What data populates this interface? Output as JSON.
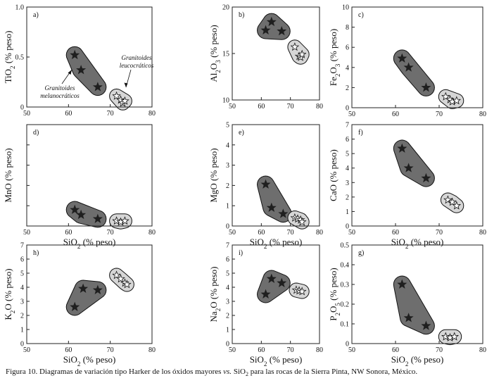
{
  "figure": {
    "caption_prefix": "Figura 10. Diagramas de variación tipo Harker de los óxidos mayores ",
    "caption_vs": "vs.",
    "caption_mid": " SiO",
    "caption_sub": "2",
    "caption_suffix": " para las rocas de la Sierra Pinta, NW Sonora, México.",
    "group_labels": {
      "leuco_line1": "Granitoides",
      "leuco_line2": "leucocráticos",
      "mela_line1": "Granitoides",
      "mela_line2": "melanocráticos"
    },
    "colors": {
      "melanocratic_field": "#6e6e6e",
      "leucocratic_field": "#d6d6d6",
      "frame": "#222222",
      "star_dark": "#1f1f1f",
      "star_open": "#ffffff"
    }
  },
  "chart_data": [
    {
      "type": "scatter",
      "panel": "a)",
      "ylabel_parts": [
        [
          "TiO",
          ""
        ],
        [
          "2",
          "sub"
        ],
        [
          " (% peso)",
          ""
        ]
      ],
      "xlabel_parts": [],
      "xlim": [
        50,
        80
      ],
      "xticks": [
        50,
        60,
        70,
        80
      ],
      "ylim": [
        0,
        1.0
      ],
      "yticks": [
        0,
        0.5,
        1.0
      ],
      "ytick_labels": [
        "0",
        "0.5",
        "1.0"
      ],
      "series": [
        {
          "name": "Granitoides melanocráticos",
          "marker": "filled-star",
          "points": [
            [
              61.5,
              0.52
            ],
            [
              63.0,
              0.37
            ],
            [
              67.0,
              0.2
            ]
          ]
        },
        {
          "name": "Granitoides leucocráticos",
          "marker": "open-star",
          "points": [
            [
              71.5,
              0.11
            ],
            [
              72.5,
              0.07
            ],
            [
              73.0,
              0.04
            ],
            [
              73.5,
              0.06
            ]
          ]
        }
      ]
    },
    {
      "type": "scatter",
      "panel": "b)",
      "ylabel_parts": [
        [
          "Al",
          ""
        ],
        [
          "2",
          "sub"
        ],
        [
          "O",
          ""
        ],
        [
          "3",
          "sub"
        ],
        [
          " (% peso)",
          ""
        ]
      ],
      "xlabel_parts": [],
      "xlim": [
        50,
        80
      ],
      "xticks": [
        50,
        60,
        70,
        80
      ],
      "ylim": [
        10,
        20
      ],
      "yticks": [
        10,
        15,
        20
      ],
      "ytick_labels": [
        "10",
        "15",
        "20"
      ],
      "series": [
        {
          "name": "Granitoides melanocráticos",
          "marker": "filled-star",
          "points": [
            [
              61.5,
              17.5
            ],
            [
              63.5,
              18.4
            ],
            [
              67.0,
              17.4
            ]
          ]
        },
        {
          "name": "Granitoides leucocráticos",
          "marker": "open-star",
          "points": [
            [
              71.5,
              15.7
            ],
            [
              73.0,
              14.7
            ],
            [
              73.5,
              14.6
            ],
            [
              74.0,
              14.9
            ]
          ]
        }
      ]
    },
    {
      "type": "scatter",
      "panel": "c)",
      "ylabel_parts": [
        [
          "Fe",
          ""
        ],
        [
          "2",
          "sub"
        ],
        [
          "O",
          ""
        ],
        [
          "3",
          "sub"
        ],
        [
          " (% peso)",
          ""
        ]
      ],
      "xlabel_parts": [],
      "xlim": [
        50,
        80
      ],
      "xticks": [
        50,
        60,
        70,
        80
      ],
      "ylim": [
        0,
        10
      ],
      "yticks": [
        0,
        2,
        4,
        6,
        8,
        10
      ],
      "ytick_labels": [
        "0",
        "2",
        "4",
        "6",
        "8",
        "10"
      ],
      "series": [
        {
          "name": "Granitoides melanocráticos",
          "marker": "filled-star",
          "points": [
            [
              61.5,
              4.9
            ],
            [
              63.0,
              4.0
            ],
            [
              67.0,
              2.0
            ]
          ]
        },
        {
          "name": "Granitoides leucocráticos",
          "marker": "open-star",
          "points": [
            [
              71.5,
              1.1
            ],
            [
              72.5,
              0.8
            ],
            [
              73.0,
              0.6
            ],
            [
              74.0,
              0.7
            ]
          ]
        }
      ]
    },
    {
      "type": "scatter",
      "panel": "d)",
      "ylabel_parts": [
        [
          "MnO (% peso)",
          ""
        ]
      ],
      "xlabel_parts": [
        [
          "SiO",
          ""
        ],
        [
          "2",
          "sub"
        ],
        [
          " (% peso)",
          ""
        ]
      ],
      "xlim": [
        50,
        80
      ],
      "xticks": [
        50,
        60,
        70,
        80
      ],
      "ylim": [
        0,
        1.0
      ],
      "yticks": [
        0,
        0.2,
        0.4,
        0.6,
        0.8,
        1.0
      ],
      "ytick_labels": [
        "0",
        "0.2",
        "0.4",
        "0.6",
        "0.8",
        "1.0"
      ],
      "show_ytick_labels": false,
      "series": [
        {
          "name": "Granitoides melanocráticos",
          "marker": "filled-star",
          "points": [
            [
              61.5,
              0.16
            ],
            [
              63.0,
              0.11
            ],
            [
              67.0,
              0.07
            ]
          ]
        },
        {
          "name": "Granitoides leucocráticos",
          "marker": "open-star",
          "points": [
            [
              71.5,
              0.05
            ],
            [
              72.5,
              0.04
            ],
            [
              73.5,
              0.05
            ]
          ]
        }
      ]
    },
    {
      "type": "scatter",
      "panel": "e)",
      "ylabel_parts": [
        [
          "MgO (% peso)",
          ""
        ]
      ],
      "xlabel_parts": [
        [
          "SiO",
          ""
        ],
        [
          "2",
          "sub"
        ],
        [
          " (% peso)",
          ""
        ]
      ],
      "xlim": [
        50,
        80
      ],
      "xticks": [
        50,
        60,
        70,
        80
      ],
      "ylim": [
        0,
        5
      ],
      "yticks": [
        0,
        1,
        2,
        3,
        4,
        5
      ],
      "ytick_labels": [
        "0",
        "1",
        "2",
        "3",
        "4",
        "5"
      ],
      "series": [
        {
          "name": "Granitoides melanocráticos",
          "marker": "filled-star",
          "points": [
            [
              61.5,
              2.05
            ],
            [
              63.5,
              0.9
            ],
            [
              67.5,
              0.6
            ]
          ]
        },
        {
          "name": "Granitoides leucocráticos",
          "marker": "open-star",
          "points": [
            [
              71.5,
              0.4
            ],
            [
              72.5,
              0.35
            ],
            [
              73.5,
              0.3
            ],
            [
              74.0,
              0.2
            ]
          ]
        }
      ]
    },
    {
      "type": "scatter",
      "panel": "f)",
      "ylabel_parts": [
        [
          "CaO (% peso)",
          ""
        ]
      ],
      "xlabel_parts": [
        [
          "SiO",
          ""
        ],
        [
          "2",
          "sub"
        ],
        [
          " (% peso)",
          ""
        ]
      ],
      "xlim": [
        50,
        80
      ],
      "xticks": [
        50,
        60,
        70,
        80
      ],
      "ylim": [
        0,
        7
      ],
      "yticks": [
        0,
        1,
        2,
        3,
        4,
        5,
        6,
        7
      ],
      "ytick_labels": [
        "0",
        "1",
        "2",
        "3",
        "4",
        "5",
        "6",
        "7"
      ],
      "series": [
        {
          "name": "Granitoides melanocráticos",
          "marker": "filled-star",
          "points": [
            [
              61.5,
              5.35
            ],
            [
              63.0,
              4.0
            ],
            [
              67.0,
              3.3
            ]
          ]
        },
        {
          "name": "Granitoides leucocráticos",
          "marker": "open-star",
          "points": [
            [
              72.0,
              1.8
            ],
            [
              73.0,
              1.65
            ],
            [
              74.0,
              1.4
            ]
          ]
        }
      ]
    },
    {
      "type": "scatter",
      "panel": "h)",
      "ylabel_parts": [
        [
          "K",
          ""
        ],
        [
          "2",
          "sub"
        ],
        [
          "O (% peso)",
          ""
        ]
      ],
      "xlabel_parts": [
        [
          "SiO",
          ""
        ],
        [
          "2",
          "sub"
        ],
        [
          " (% peso)",
          ""
        ]
      ],
      "xlim": [
        50,
        80
      ],
      "xticks": [
        50,
        60,
        70,
        80
      ],
      "ylim": [
        0,
        7
      ],
      "yticks": [
        0,
        1,
        2,
        3,
        4,
        5,
        6,
        7
      ],
      "ytick_labels": [
        "0",
        "1",
        "2",
        "3",
        "4",
        "5",
        "6",
        "7"
      ],
      "series": [
        {
          "name": "Granitoides melanocráticos",
          "marker": "filled-star",
          "points": [
            [
              61.5,
              2.6
            ],
            [
              63.5,
              3.9
            ],
            [
              67.0,
              3.8
            ]
          ]
        },
        {
          "name": "Granitoides leucocráticos",
          "marker": "open-star",
          "points": [
            [
              71.5,
              4.85
            ],
            [
              72.5,
              4.6
            ],
            [
              73.5,
              4.3
            ],
            [
              74.0,
              4.2
            ]
          ]
        }
      ]
    },
    {
      "type": "scatter",
      "panel": "i)",
      "ylabel_parts": [
        [
          "Na",
          ""
        ],
        [
          "2",
          "sub"
        ],
        [
          "O (% peso)",
          ""
        ]
      ],
      "xlabel_parts": [
        [
          "SiO",
          ""
        ],
        [
          "2",
          "sub"
        ],
        [
          " (% peso)",
          ""
        ]
      ],
      "xlim": [
        50,
        80
      ],
      "xticks": [
        50,
        60,
        70,
        80
      ],
      "ylim": [
        0,
        7
      ],
      "yticks": [
        0,
        1,
        2,
        3,
        4,
        5,
        6,
        7
      ],
      "ytick_labels": [
        "0",
        "1",
        "2",
        "3",
        "4",
        "5",
        "6",
        "7"
      ],
      "series": [
        {
          "name": "Granitoides melanocráticos",
          "marker": "filled-star",
          "points": [
            [
              61.5,
              3.5
            ],
            [
              63.5,
              4.6
            ],
            [
              67.0,
              4.3
            ]
          ]
        },
        {
          "name": "Granitoides leucocráticos",
          "marker": "open-star",
          "points": [
            [
              72.0,
              3.8
            ],
            [
              73.0,
              3.75
            ],
            [
              74.0,
              3.7
            ]
          ]
        }
      ]
    },
    {
      "type": "scatter",
      "panel": "g)",
      "ylabel_parts": [
        [
          "P",
          ""
        ],
        [
          "2",
          "sub"
        ],
        [
          "O",
          ""
        ],
        [
          "5",
          "sub"
        ],
        [
          " (% peso)",
          ""
        ]
      ],
      "xlabel_parts": [
        [
          "SiO",
          ""
        ],
        [
          "2",
          "sub"
        ],
        [
          " (% peso)",
          ""
        ]
      ],
      "xlim": [
        50,
        80
      ],
      "xticks": [
        50,
        60,
        70,
        80
      ],
      "ylim": [
        0,
        0.5
      ],
      "yticks": [
        0,
        0.1,
        0.2,
        0.3,
        0.4,
        0.5
      ],
      "ytick_labels": [
        "0",
        "0.1",
        "0.2",
        "0.3",
        "0.4",
        "0.5"
      ],
      "series": [
        {
          "name": "Granitoides melanocráticos",
          "marker": "filled-star",
          "points": [
            [
              61.5,
              0.3
            ],
            [
              63.0,
              0.13
            ],
            [
              67.0,
              0.09
            ]
          ]
        },
        {
          "name": "Granitoides leucocráticos",
          "marker": "open-star",
          "points": [
            [
              71.5,
              0.035
            ],
            [
              72.5,
              0.03
            ],
            [
              73.5,
              0.035
            ]
          ]
        }
      ]
    }
  ]
}
